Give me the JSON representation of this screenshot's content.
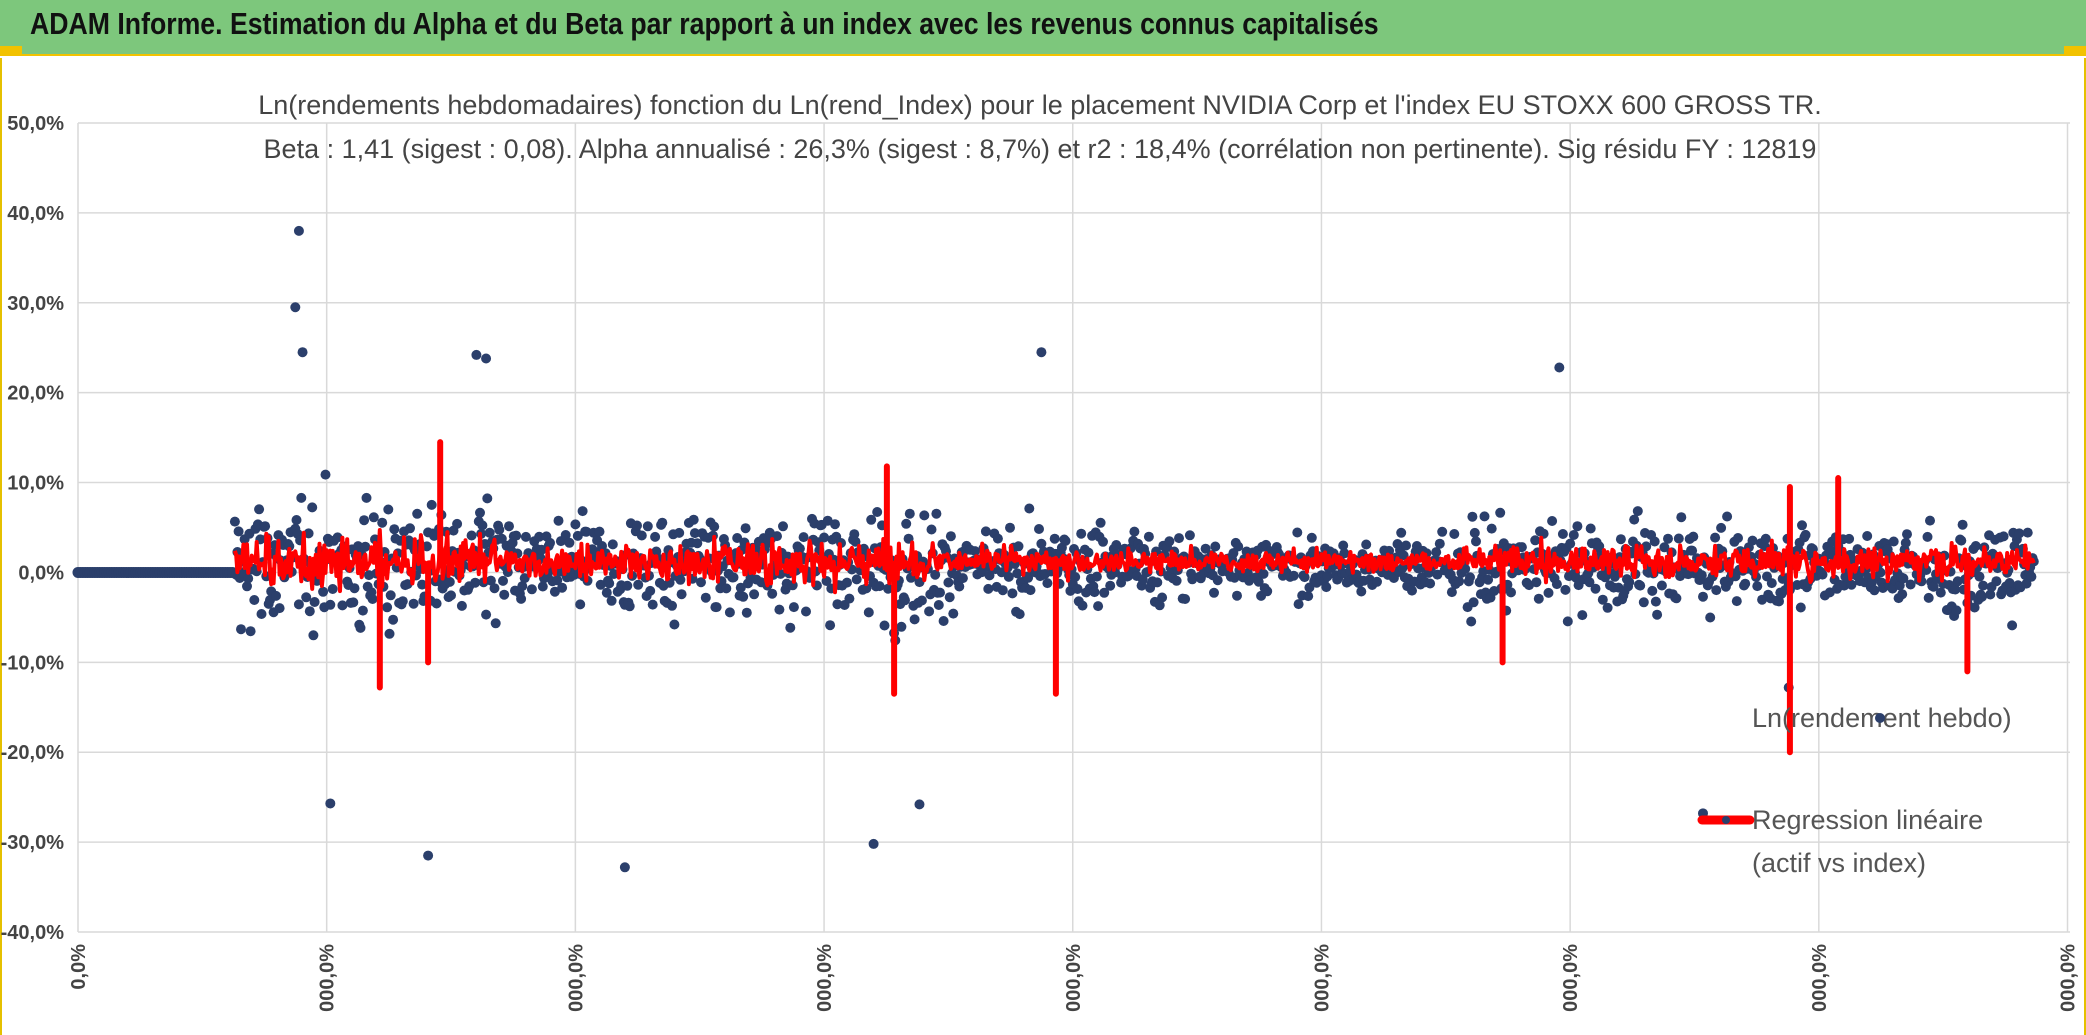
{
  "header": {
    "title": "ADAM Informe. Estimation du Alpha et du Beta par rapport à un index avec les revenus connus capitalisés"
  },
  "colors": {
    "banner": "#7dc77c",
    "accent": "#f2c200",
    "points": "#2b3f6b",
    "regression": "#ff0000",
    "grid": "#d9d9d9"
  },
  "chart_data": {
    "type": "scatter",
    "title_line1": "Ln(rendements hebdomadaires) fonction du Ln(rend_Index) pour le placement NVIDIA Corp et l'index EU STOXX 600 GROSS TR.",
    "title_line2": "Beta : 1,41 (sigest : 0,08). Alpha annualisé : 26,3% (sigest : 8,7%) et r2 : 18,4% (corrélation non pertinente). Sig résidu FY : 12819",
    "ylim": [
      -40,
      50
    ],
    "yticks": [
      "50,0%",
      "40,0%",
      "30,0%",
      "20,0%",
      "10,0%",
      "0,0%",
      "-10,0%",
      "-20,0%",
      "-30,0%",
      "-40,0%"
    ],
    "xticks": [
      "0,0%",
      "000,0%",
      "000,0%",
      "000,0%",
      "000,0%",
      "000,0%",
      "000,0%",
      "000,0%",
      "000,0%"
    ],
    "x_index_range": [
      0,
      1650
    ],
    "flat_segment_end": 130,
    "data_start": 130,
    "legend": {
      "series1": "Ln(rendement hebdo)",
      "series2_line1": "Regression linéaire",
      "series2_line2": "(actif vs index)"
    },
    "highlight_points": [
      {
        "x": 183,
        "y": 38.0
      },
      {
        "x": 180,
        "y": 29.5
      },
      {
        "x": 186,
        "y": 24.5
      },
      {
        "x": 330,
        "y": 24.2
      },
      {
        "x": 338,
        "y": 23.8
      },
      {
        "x": 798,
        "y": 24.5
      },
      {
        "x": 1227,
        "y": 22.8
      },
      {
        "x": 290,
        "y": -31.5
      },
      {
        "x": 453,
        "y": -32.8
      },
      {
        "x": 659,
        "y": -30.2
      },
      {
        "x": 1346,
        "y": -26.8
      },
      {
        "x": 209,
        "y": -25.7
      },
      {
        "x": 697,
        "y": -25.8
      },
      {
        "x": 1417,
        "y": -12.8
      }
    ],
    "regression_spikes": [
      {
        "x": 300,
        "y": 14.5
      },
      {
        "x": 290,
        "y": -10.0
      },
      {
        "x": 670,
        "y": 11.8
      },
      {
        "x": 676,
        "y": -13.5
      },
      {
        "x": 810,
        "y": -13.5
      },
      {
        "x": 1418,
        "y": -20.0
      },
      {
        "x": 1418,
        "y": 9.5
      },
      {
        "x": 1180,
        "y": -10.0
      },
      {
        "x": 1565,
        "y": -11.0
      },
      {
        "x": 250,
        "y": -12.8
      },
      {
        "x": 1458,
        "y": 10.5
      }
    ]
  }
}
